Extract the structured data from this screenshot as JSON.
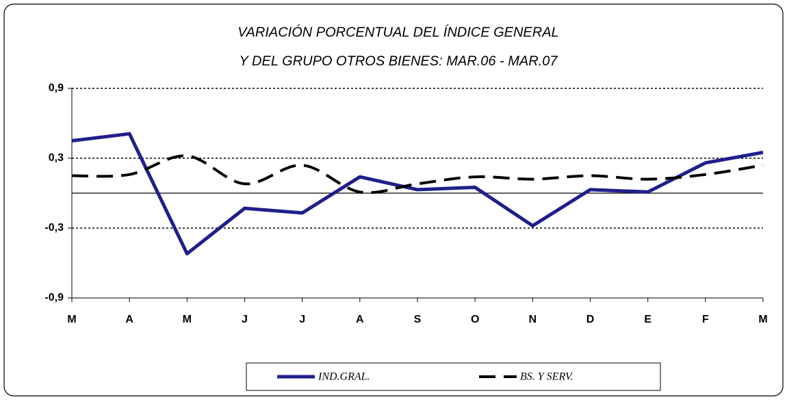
{
  "chart_data": {
    "type": "line",
    "title": [
      "VARIACIÓN PORCENTUAL DEL ÍNDICE GENERAL",
      "Y DEL GRUPO OTROS BIENES: MAR.06 - MAR.07"
    ],
    "categories": [
      "M",
      "A",
      "M",
      "J",
      "J",
      "A",
      "S",
      "O",
      "N",
      "D",
      "E",
      "F",
      "M"
    ],
    "series": [
      {
        "name": "IND.GRAL.",
        "color": "#1f1f8c",
        "style": "solid",
        "values": [
          0.45,
          0.51,
          -0.52,
          -0.13,
          -0.17,
          0.14,
          0.03,
          0.05,
          -0.28,
          0.03,
          0.01,
          0.26,
          0.35
        ]
      },
      {
        "name": "BS. Y SERV.",
        "color": "#000000",
        "style": "dashed",
        "values": [
          0.15,
          0.16,
          0.32,
          0.08,
          0.24,
          0.01,
          0.08,
          0.14,
          0.12,
          0.15,
          0.12,
          0.16,
          0.24
        ]
      }
    ],
    "ylim": [
      -0.9,
      0.9
    ],
    "yticks": [
      {
        "value": 0.9,
        "label": "0,9"
      },
      {
        "value": 0.3,
        "label": "0,3"
      },
      {
        "value": -0.3,
        "label": "-0,3"
      },
      {
        "value": -0.9,
        "label": "-0,9"
      }
    ],
    "grid": true,
    "legend": "bottom"
  }
}
